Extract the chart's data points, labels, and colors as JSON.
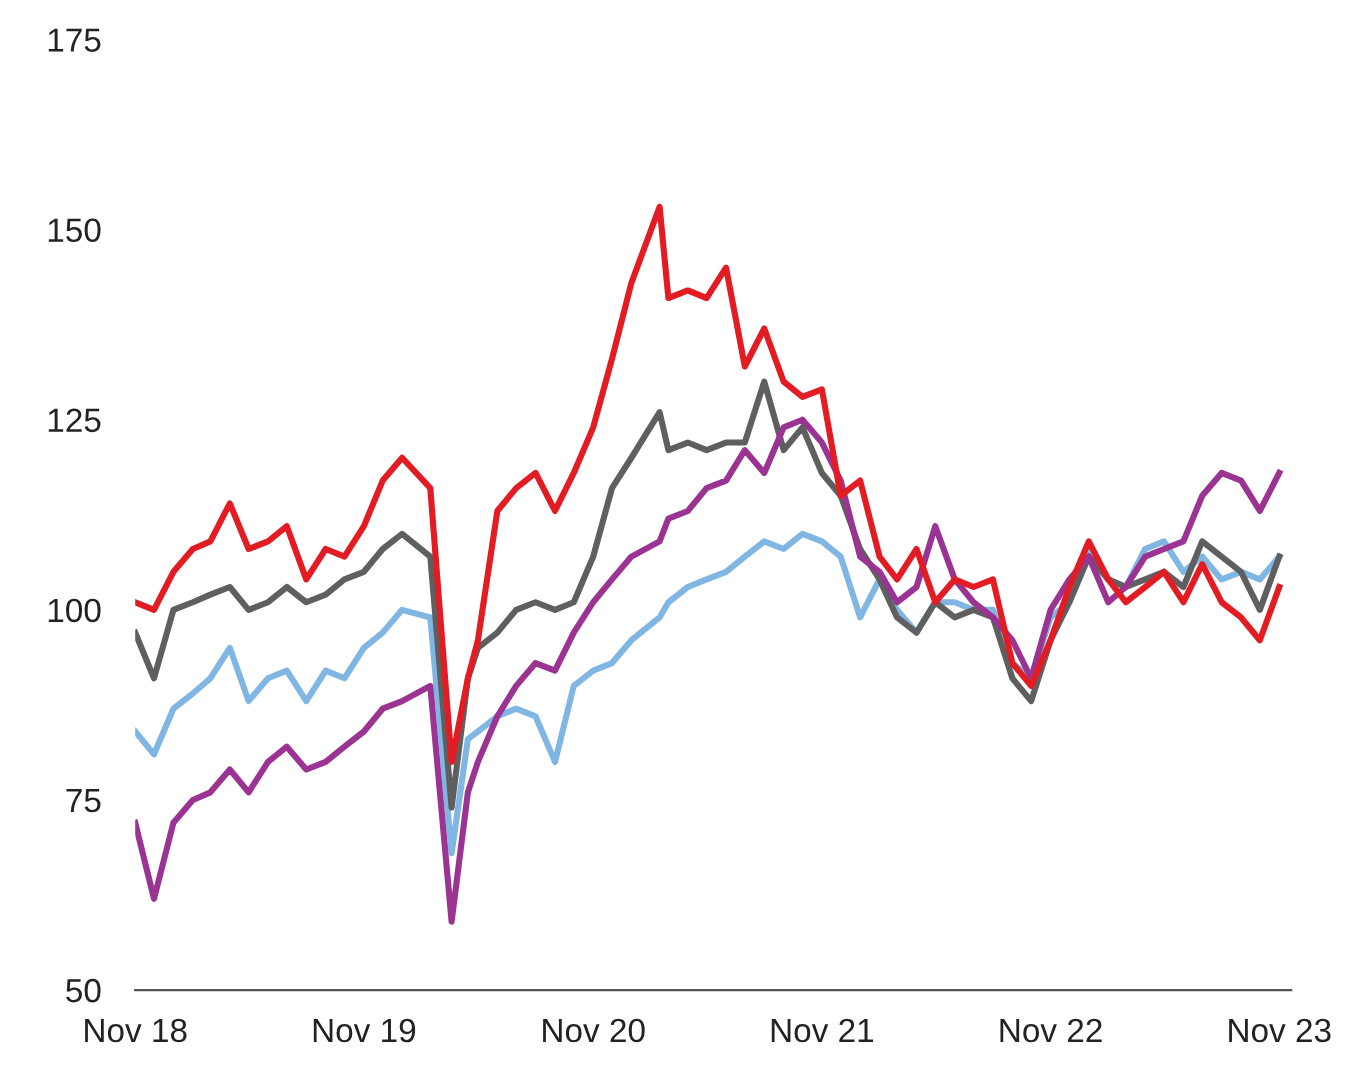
{
  "chart_data": {
    "type": "line",
    "x": [
      "2018-11-01",
      "2018-12-01",
      "2019-01-01",
      "2019-02-01",
      "2019-03-01",
      "2019-04-01",
      "2019-05-01",
      "2019-06-01",
      "2019-07-01",
      "2019-08-01",
      "2019-09-01",
      "2019-10-01",
      "2019-11-01",
      "2019-12-01",
      "2020-01-01",
      "2020-02-15",
      "2020-03-20",
      "2020-04-15",
      "2020-05-01",
      "2020-06-01",
      "2020-07-01",
      "2020-08-01",
      "2020-09-01",
      "2020-10-01",
      "2020-11-01",
      "2020-12-01",
      "2021-01-01",
      "2021-02-15",
      "2021-03-01",
      "2021-04-01",
      "2021-05-01",
      "2021-06-01",
      "2021-07-01",
      "2021-08-01",
      "2021-09-01",
      "2021-10-01",
      "2021-11-01",
      "2021-12-01",
      "2022-01-01",
      "2022-02-01",
      "2022-03-01",
      "2022-04-01",
      "2022-05-01",
      "2022-06-01",
      "2022-07-01",
      "2022-08-01",
      "2022-09-01",
      "2022-10-01",
      "2022-11-01",
      "2022-12-01",
      "2023-01-01",
      "2023-02-01",
      "2023-03-01",
      "2023-04-01",
      "2023-05-01",
      "2023-06-01",
      "2023-07-01",
      "2023-08-01",
      "2023-09-01",
      "2023-10-01",
      "2023-11-01"
    ],
    "series": [
      {
        "color": "#7fb6e3",
        "values": [
          84,
          81,
          87,
          89,
          91,
          95,
          88,
          91,
          92,
          88,
          92,
          91,
          95,
          97,
          100,
          99,
          68,
          83,
          84,
          86,
          87,
          86,
          80,
          90,
          92,
          93,
          96,
          99,
          101,
          103,
          104,
          105,
          107,
          109,
          108,
          110,
          109,
          107,
          99,
          104,
          100,
          97,
          101,
          101,
          100,
          100,
          93,
          91,
          99,
          101,
          108,
          104,
          103,
          108,
          109,
          105,
          107,
          104,
          105,
          104,
          107
        ]
      },
      {
        "color": "#5f5f5f",
        "values": [
          97,
          91,
          100,
          101,
          102,
          103,
          100,
          101,
          103,
          101,
          102,
          104,
          105,
          108,
          110,
          107,
          74,
          91,
          95,
          97,
          100,
          101,
          100,
          101,
          107,
          116,
          120,
          126,
          121,
          122,
          121,
          122,
          122,
          130,
          121,
          124,
          118,
          115,
          108,
          104,
          99,
          97,
          101,
          99,
          100,
          99,
          91,
          88,
          96,
          101,
          107,
          104,
          103,
          104,
          105,
          103,
          109,
          107,
          105,
          100,
          107
        ]
      },
      {
        "color": "#9b3393",
        "values": [
          72,
          62,
          72,
          75,
          76,
          79,
          76,
          80,
          82,
          79,
          80,
          82,
          84,
          87,
          88,
          90,
          59,
          76,
          80,
          86,
          90,
          93,
          92,
          97,
          101,
          104,
          107,
          109,
          112,
          113,
          116,
          117,
          121,
          118,
          124,
          125,
          122,
          117,
          107,
          105,
          101,
          103,
          111,
          104,
          101,
          99,
          96,
          91,
          100,
          104,
          107,
          101,
          103,
          107,
          108,
          109,
          115,
          118,
          117,
          113,
          118
        ]
      },
      {
        "color": "#e31b23",
        "values": [
          101,
          100,
          105,
          108,
          109,
          114,
          108,
          109,
          111,
          104,
          108,
          107,
          111,
          117,
          120,
          116,
          80,
          91,
          96,
          113,
          116,
          118,
          113,
          118,
          124,
          133,
          143,
          153,
          141,
          142,
          141,
          145,
          132,
          137,
          130,
          128,
          129,
          115,
          117,
          107,
          104,
          108,
          101,
          104,
          103,
          104,
          93,
          90,
          96,
          103,
          109,
          104,
          101,
          103,
          105,
          101,
          106,
          101,
          99,
          96,
          103
        ]
      }
    ],
    "xlim": [
      "2018-11-01",
      "2023-11-20"
    ],
    "xticks": [
      {
        "value": "2018-11-01",
        "label": "Nov 18"
      },
      {
        "value": "2019-11-01",
        "label": "Nov 19"
      },
      {
        "value": "2020-11-01",
        "label": "Nov 20"
      },
      {
        "value": "2021-11-01",
        "label": "Nov 21"
      },
      {
        "value": "2022-11-01",
        "label": "Nov 22"
      },
      {
        "value": "2023-11-01",
        "label": "Nov 23"
      }
    ],
    "ylim": [
      50,
      175
    ],
    "yticks": [
      50,
      75,
      100,
      125,
      150,
      175
    ],
    "grid": false
  }
}
